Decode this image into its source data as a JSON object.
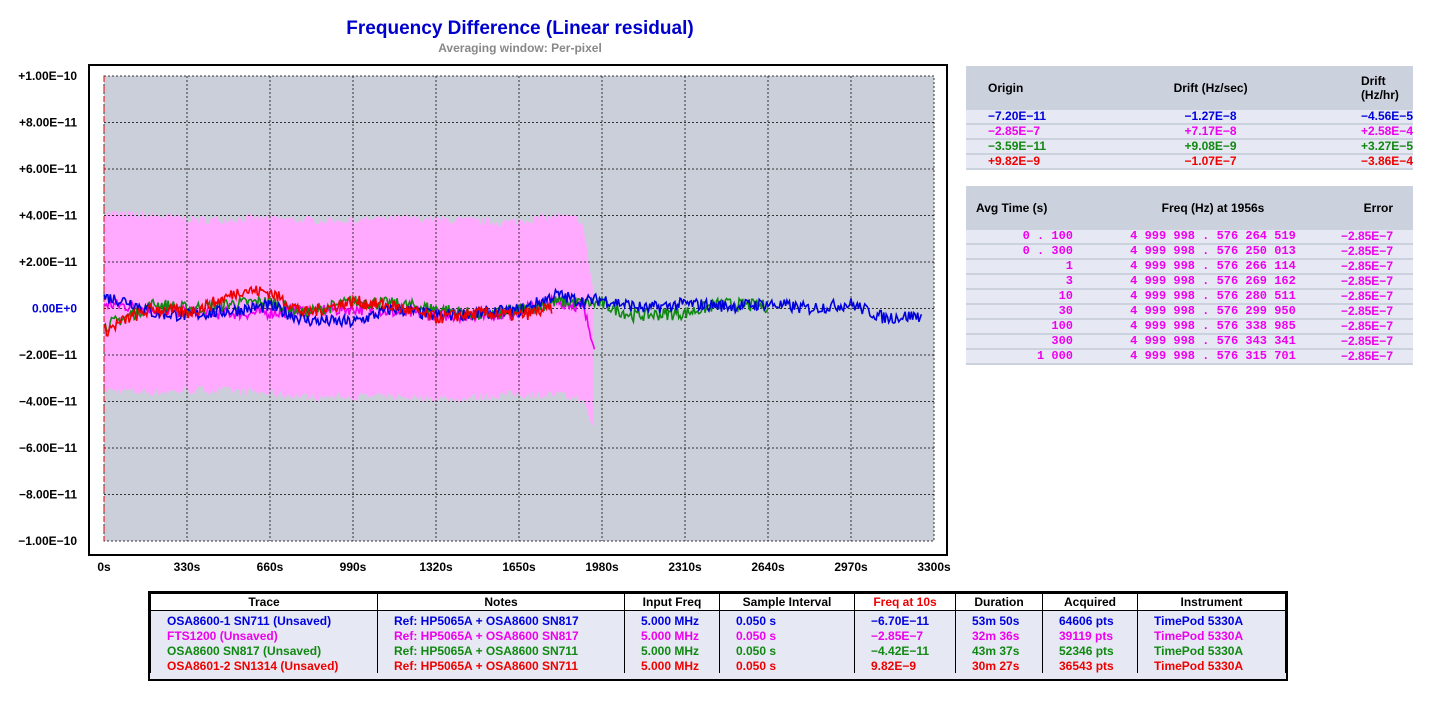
{
  "chart_title": "Frequency Difference (Linear residual)",
  "chart_subtitle": "Averaging window: Per-pixel",
  "colors": {
    "blue": "#0000dd",
    "magenta": "#ee00ee",
    "green": "#118811",
    "red": "#ee0000",
    "band": "#ffaaff",
    "plot_bg": "#cbcfda"
  },
  "chart_data": {
    "type": "line",
    "title": "Frequency Difference (Linear residual)",
    "subtitle": "Averaging window: Per-pixel",
    "xlabel": "",
    "ylabel": "",
    "xlim": [
      0,
      3300
    ],
    "ylim": [
      -1e-10,
      1e-10
    ],
    "x_ticks": [
      "0s",
      "330s",
      "660s",
      "990s",
      "1320s",
      "1650s",
      "1980s",
      "2310s",
      "2640s",
      "2970s",
      "3300s"
    ],
    "y_ticks": [
      "+1.00E−10",
      "+8.00E−11",
      "+6.00E−11",
      "+4.00E−11",
      "+2.00E−11",
      "0.00E+0",
      "−2.00E−11",
      "−4.00E−11",
      "−6.00E−11",
      "−8.00E−11",
      "−1.00E−10"
    ],
    "grid": true,
    "series": [
      {
        "name": "OSA8600-1 SN711 (Unsaved)",
        "color": "#0000dd",
        "x": [
          0,
          100,
          200,
          330,
          500,
          660,
          800,
          990,
          1150,
          1320,
          1500,
          1650,
          1800,
          1900,
          1980,
          2150,
          2310,
          2500,
          2640,
          2800,
          2970,
          3100,
          3250
        ],
        "y": [
          5e-12,
          3e-12,
          -2e-12,
          -3e-12,
          -1e-12,
          1e-12,
          -5e-12,
          -6e-12,
          0,
          -3e-12,
          -2e-12,
          -1e-12,
          6e-12,
          3e-12,
          4e-12,
          0,
          2e-12,
          1e-12,
          2e-12,
          0,
          2e-12,
          -4e-12,
          -3e-12
        ]
      },
      {
        "name": "FTS1200 (Unsaved)",
        "color": "#ee00ee",
        "x": [
          0,
          200,
          400,
          600,
          800,
          1000,
          1200,
          1400,
          1600,
          1800,
          1900,
          1950
        ],
        "y": [
          2e-12,
          0,
          -2e-12,
          -2e-12,
          -1e-12,
          0,
          -2e-12,
          -3e-12,
          -2e-12,
          3e-12,
          1e-12,
          -1.5e-11
        ],
        "band_upper": [
          4.1e-11,
          4e-11,
          3.8e-11,
          3.9e-11,
          3.8e-11,
          3.8e-11,
          3.9e-11,
          3.8e-11,
          3.7e-11,
          4e-11,
          3.8e-11,
          5e-12
        ],
        "band_lower": [
          -3.5e-11,
          -3.6e-11,
          -3.5e-11,
          -3.6e-11,
          -3.8e-11,
          -3.8e-11,
          -3.8e-11,
          -3.9e-11,
          -3.7e-11,
          -3.7e-11,
          -3.9e-11,
          -5.3e-11
        ]
      },
      {
        "name": "OSA8600 SN817 (Unsaved)",
        "color": "#118811",
        "x": [
          0,
          100,
          200,
          330,
          500,
          660,
          800,
          990,
          1150,
          1320,
          1500,
          1650,
          1800,
          1980,
          2100,
          2310,
          2450,
          2640
        ],
        "y": [
          -8e-12,
          -3e-12,
          2e-12,
          0,
          2e-12,
          3e-12,
          -2e-12,
          3e-12,
          2e-12,
          0,
          -3e-12,
          -1e-12,
          3e-12,
          2e-12,
          -3e-12,
          -2e-12,
          2e-12,
          1e-12
        ]
      },
      {
        "name": "OSA8601-2 SN1314 (Unsaved)",
        "color": "#ee0000",
        "x": [
          0,
          100,
          200,
          330,
          450,
          550,
          660,
          800,
          990,
          1150,
          1320,
          1500,
          1650,
          1780
        ],
        "y": [
          -1e-11,
          -4e-12,
          0,
          -2e-12,
          3e-12,
          8e-12,
          7e-12,
          -2e-12,
          3e-12,
          1e-12,
          -4e-12,
          -2e-12,
          -3e-12,
          0
        ]
      }
    ]
  },
  "stats_panel": {
    "headers": [
      "Origin",
      "Drift (Hz/sec)",
      "Drift (Hz/hr)"
    ],
    "rows": [
      {
        "color": "#0000dd",
        "origin": "−7.20E−11",
        "drift_sec": "−1.27E−8",
        "drift_hr": "−4.56E−5"
      },
      {
        "color": "#ee00ee",
        "origin": "−2.85E−7",
        "drift_sec": "+7.17E−8",
        "drift_hr": "+2.58E−4"
      },
      {
        "color": "#118811",
        "origin": "−3.59E−11",
        "drift_sec": "+9.08E−9",
        "drift_hr": "+3.27E−5"
      },
      {
        "color": "#ee0000",
        "origin": "+9.82E−9",
        "drift_sec": "−1.07E−7",
        "drift_hr": "−3.86E−4"
      }
    ]
  },
  "freq_panel": {
    "headers": [
      "Avg Time (s)",
      "Freq (Hz) at 1956s",
      "Error"
    ],
    "color": "#ee00ee",
    "rows": [
      {
        "avg": "0 . 100",
        "freq": "4 999 998 . 576 264 519",
        "err": "−2.85E−7"
      },
      {
        "avg": "0 . 300",
        "freq": "4 999 998 . 576 250 013",
        "err": "−2.85E−7"
      },
      {
        "avg": "1",
        "freq": "4 999 998 . 576 266 114",
        "err": "−2.85E−7"
      },
      {
        "avg": "3",
        "freq": "4 999 998 . 576 269 162",
        "err": "−2.85E−7"
      },
      {
        "avg": "10",
        "freq": "4 999 998 . 576 280 511",
        "err": "−2.85E−7"
      },
      {
        "avg": "30",
        "freq": "4 999 998 . 576 299 950",
        "err": "−2.85E−7"
      },
      {
        "avg": "100",
        "freq": "4 999 998 . 576 338 985",
        "err": "−2.85E−7"
      },
      {
        "avg": "300",
        "freq": "4 999 998 . 576 343 341",
        "err": "−2.85E−7"
      },
      {
        "avg": "1 000",
        "freq": "4 999 998 . 576 315 701",
        "err": "−2.85E−7"
      }
    ]
  },
  "legend_table": {
    "headers": [
      "Trace",
      "Notes",
      "Input Freq",
      "Sample Interval",
      "Freq at 10s",
      "Duration",
      "Acquired",
      "Instrument"
    ],
    "rows": [
      {
        "color": "#0000dd",
        "cells": [
          "OSA8600-1 SN711 (Unsaved)",
          "Ref: HP5065A + OSA8600 SN817",
          "5.000 MHz",
          "0.050 s",
          "−6.70E−11",
          "53m 50s",
          "64606 pts",
          "TimePod 5330A"
        ]
      },
      {
        "color": "#ee00ee",
        "cells": [
          "FTS1200 (Unsaved)",
          "Ref: HP5065A + OSA8600 SN817",
          "5.000 MHz",
          "0.050 s",
          "−2.85E−7",
          "32m 36s",
          "39119 pts",
          "TimePod 5330A"
        ]
      },
      {
        "color": "#118811",
        "cells": [
          "OSA8600 SN817 (Unsaved)",
          "Ref: HP5065A + OSA8600 SN711",
          "5.000 MHz",
          "0.050 s",
          "−4.42E−11",
          "43m 37s",
          "52346 pts",
          "TimePod 5330A"
        ]
      },
      {
        "color": "#ee0000",
        "cells": [
          "OSA8601-2 SN1314 (Unsaved)",
          "Ref: HP5065A + OSA8600 SN711",
          "5.000 MHz",
          "0.050 s",
          "9.82E−9",
          "30m 27s",
          "36543 pts",
          "TimePod 5330A"
        ]
      }
    ]
  }
}
